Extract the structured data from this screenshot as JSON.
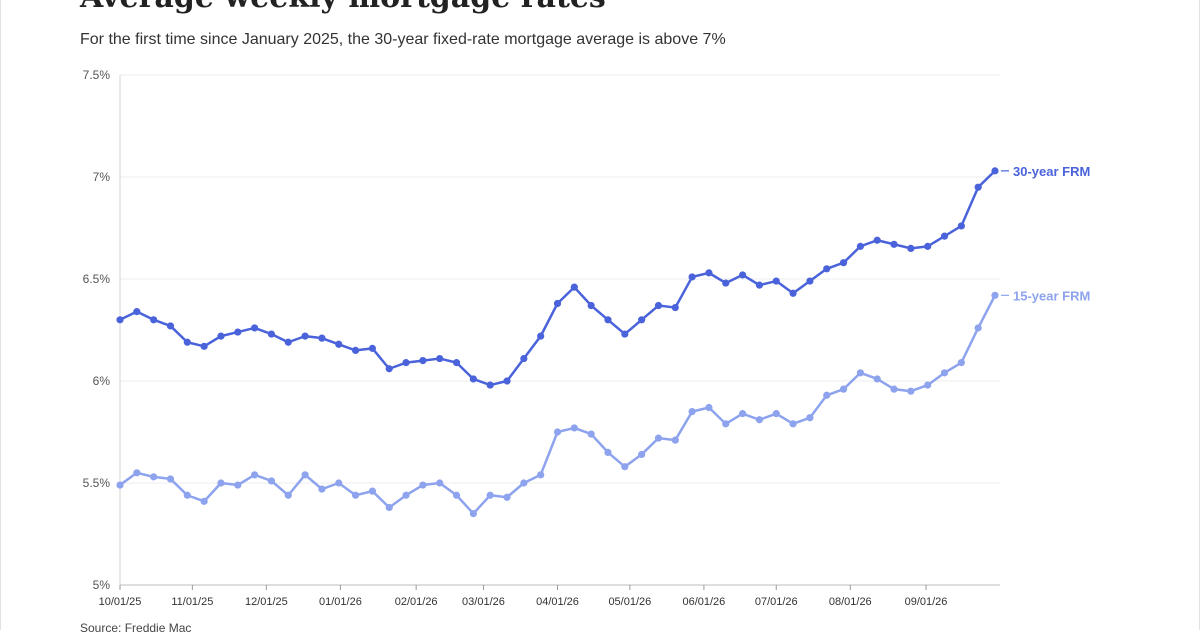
{
  "title": "Average weekly mortgage rates",
  "subtitle": "For the first time since January 2025, the 30-year fixed-rate mortgage average is above 7%",
  "source": "Source: Freddie Mac",
  "chart_data": {
    "type": "line",
    "ylim": [
      5,
      7.5
    ],
    "y_ticks": [
      {
        "value": 5,
        "label": "5%"
      },
      {
        "value": 5.5,
        "label": "5.5%"
      },
      {
        "value": 6,
        "label": "6%"
      },
      {
        "value": 6.5,
        "label": "6.5%"
      },
      {
        "value": 7,
        "label": "7%"
      },
      {
        "value": 7.5,
        "label": "7.5%"
      }
    ],
    "x_ticks": [
      {
        "week": 0,
        "label": "10/01/25"
      },
      {
        "week": 4.3,
        "label": "11/01/25"
      },
      {
        "week": 8.7,
        "label": "12/01/25"
      },
      {
        "week": 13.1,
        "label": "01/01/26"
      },
      {
        "week": 17.6,
        "label": "02/01/26"
      },
      {
        "week": 21.6,
        "label": "03/01/26"
      },
      {
        "week": 26,
        "label": "04/01/26"
      },
      {
        "week": 30.3,
        "label": "05/01/26"
      },
      {
        "week": 34.7,
        "label": "06/01/26"
      },
      {
        "week": 39,
        "label": "07/01/26"
      },
      {
        "week": 43.4,
        "label": "08/01/26"
      },
      {
        "week": 47.9,
        "label": "09/01/26"
      }
    ],
    "grid": true,
    "series": [
      {
        "name": "30-year FRM",
        "color": "#4a63db",
        "values": [
          6.3,
          6.34,
          6.3,
          6.27,
          6.19,
          6.17,
          6.22,
          6.24,
          6.26,
          6.23,
          6.19,
          6.22,
          6.21,
          6.18,
          6.15,
          6.16,
          6.06,
          6.09,
          6.1,
          6.11,
          6.09,
          6.01,
          5.98,
          6.0,
          6.11,
          6.22,
          6.38,
          6.46,
          6.37,
          6.3,
          6.23,
          6.3,
          6.37,
          6.36,
          6.51,
          6.53,
          6.48,
          6.52,
          6.47,
          6.49,
          6.43,
          6.49,
          6.55,
          6.58,
          6.66,
          6.69,
          6.67,
          6.65,
          6.66,
          6.71,
          6.76,
          6.95,
          7.03
        ]
      },
      {
        "name": "15-year FRM",
        "color": "#8ea3ee",
        "values": [
          5.49,
          5.55,
          5.53,
          5.52,
          5.44,
          5.41,
          5.5,
          5.49,
          5.54,
          5.51,
          5.44,
          5.54,
          5.47,
          5.5,
          5.44,
          5.46,
          5.38,
          5.44,
          5.49,
          5.5,
          5.44,
          5.35,
          5.44,
          5.43,
          5.5,
          5.54,
          5.75,
          5.77,
          5.74,
          5.65,
          5.58,
          5.64,
          5.72,
          5.71,
          5.85,
          5.87,
          5.79,
          5.84,
          5.81,
          5.84,
          5.79,
          5.82,
          5.93,
          5.96,
          6.04,
          6.01,
          5.96,
          5.95,
          5.98,
          6.04,
          6.09,
          6.26,
          6.42
        ]
      }
    ]
  }
}
